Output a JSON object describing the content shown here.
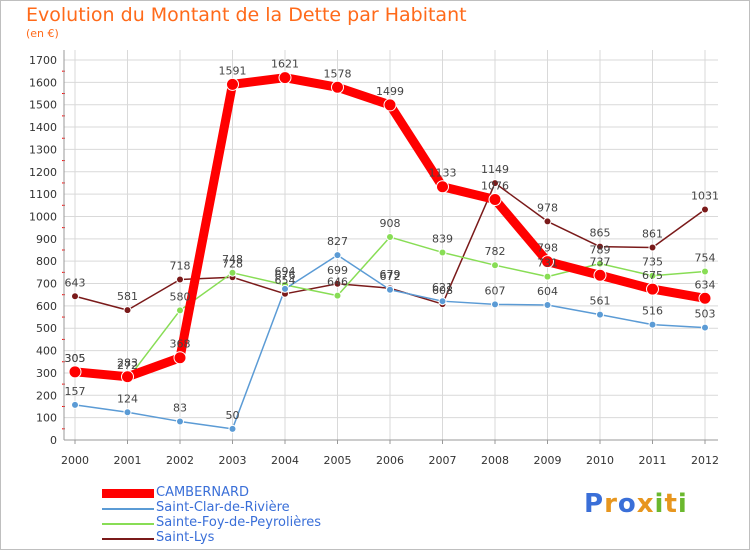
{
  "chart_data": {
    "type": "line",
    "title": "Evolution du Montant de la Dette par Habitant",
    "subtitle": "(en €)",
    "x": [
      "2000",
      "2001",
      "2002",
      "2003",
      "2004",
      "2005",
      "2006",
      "2007",
      "2008",
      "2009",
      "2010",
      "2011",
      "2012"
    ],
    "ylim": [
      0,
      1700
    ],
    "yticks": [
      0,
      100,
      200,
      300,
      400,
      500,
      600,
      700,
      800,
      900,
      1000,
      1100,
      1200,
      1300,
      1400,
      1500,
      1600,
      1700
    ],
    "grid": true,
    "legend_position": "bottom-left",
    "series": [
      {
        "name": "Saint-Lys",
        "color": "#7a1a1a",
        "values": [
          643,
          581,
          718,
          728,
          654,
          699,
          679,
          608,
          1149,
          978,
          865,
          861,
          1031
        ]
      },
      {
        "name": "Sainte-Foy-de-Peyrolières",
        "color": "#88dd55",
        "values": [
          305,
          272,
          580,
          748,
          694,
          646,
          908,
          839,
          782,
          731,
          789,
          735,
          754
        ]
      },
      {
        "name": "Saint-Clar-de-Rivière",
        "color": "#5b9bd5",
        "values": [
          157,
          124,
          83,
          50,
          676,
          827,
          672,
          621,
          607,
          604,
          561,
          516,
          503
        ]
      },
      {
        "name": "CAMBERNARD",
        "color": "#ff0000",
        "values": [
          305,
          283,
          368,
          1591,
          1621,
          1578,
          1499,
          1133,
          1076,
          798,
          737,
          675,
          634
        ]
      }
    ]
  },
  "legend": [
    {
      "name": "CAMBERNARD",
      "color": "#ff0000",
      "thick": true
    },
    {
      "name": "Saint-Clar-de-Rivière",
      "color": "#5b9bd5",
      "thick": false
    },
    {
      "name": "Sainte-Foy-de-Peyrolières",
      "color": "#88dd55",
      "thick": false
    },
    {
      "name": "Saint-Lys",
      "color": "#7a1a1a",
      "thick": false
    }
  ],
  "logo": {
    "letters": [
      "P",
      "r",
      "o",
      "x",
      "i",
      "t",
      "i"
    ],
    "colors": [
      "#3a6fd8",
      "#e7961e",
      "#3a6fd8",
      "#e7961e",
      "#6bb82e",
      "#e7961e",
      "#6bb82e"
    ]
  }
}
